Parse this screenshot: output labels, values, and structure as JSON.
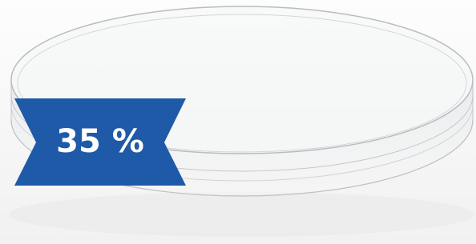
{
  "badge": {
    "text": "35 %"
  }
}
